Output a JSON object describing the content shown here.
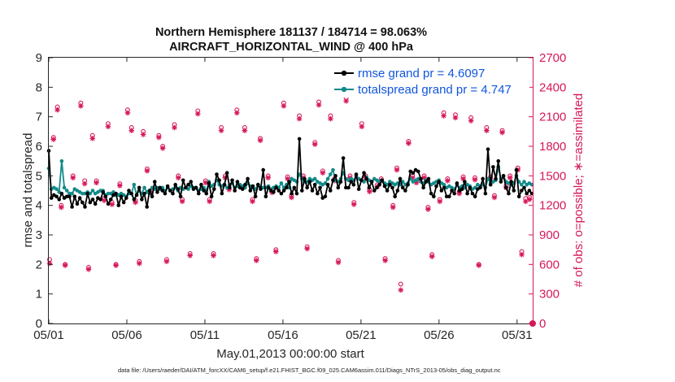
{
  "chart_data": {
    "type": "line",
    "title": "Northern Hemisphere 181137 / 184714 = 98.063%",
    "subtitle": "AIRCRAFT_HORIZONTAL_WIND @ 400 hPa",
    "xlabel": "May.01,2013 00:00:00 start",
    "ylabel": "rmse and totalspread",
    "ylabel_right": "# of obs: o=possible; ∗=assimilated",
    "footer": "data file: /Users/raeder/DAI/ATM_forcXX/CAM6_setup/f.e21.FHIST_BGC.f09_025.CAM6assim.011/Diags_NTrS_2013-05/obs_diag_output.nc",
    "x_tick_labels": [
      "05/01",
      "05/06",
      "05/11",
      "05/16",
      "05/21",
      "05/26",
      "05/31"
    ],
    "x_ticks": [
      1,
      6,
      11,
      16,
      21,
      26,
      31
    ],
    "xlim": [
      1,
      32
    ],
    "ylim": [
      0,
      9
    ],
    "y_ticks": [
      "0",
      "1",
      "2",
      "3",
      "4",
      "5",
      "6",
      "7",
      "8",
      "9"
    ],
    "ylim_right": [
      0,
      2700
    ],
    "y_ticks_right": [
      "0",
      "300",
      "600",
      "900",
      "1200",
      "1500",
      "1800",
      "2100",
      "2400",
      "2700"
    ],
    "legend": [
      {
        "name": "rmse grand pr = 4.6097"
      },
      {
        "name": "totalspread grand pr = 4.747"
      }
    ],
    "colors": {
      "rmse": "#000000",
      "spread": "#138a8a",
      "obs": "#d6175a",
      "legend_text": "#1155dd"
    },
    "series": [
      {
        "name": "rmse",
        "values": [
          5.85,
          4.25,
          4.35,
          4.3,
          4.2,
          4.4,
          4.25,
          4.3,
          4.3,
          3.95,
          4.3,
          4.05,
          4.25,
          4.1,
          3.95,
          4.4,
          4.1,
          4.2,
          4.05,
          4.25,
          4.2,
          4.45,
          4.3,
          4.05,
          4.2,
          4.35,
          4.4,
          4.0,
          4.3,
          4.1,
          4.25,
          4.5,
          4.4,
          4.2,
          4.35,
          4.6,
          4.2,
          4.4,
          3.95,
          4.5,
          4.3,
          4.8,
          4.45,
          4.6,
          4.5,
          4.4,
          4.65,
          4.5,
          4.4,
          4.7,
          4.55,
          4.3,
          4.85,
          4.6,
          4.7,
          4.8,
          4.55,
          4.6,
          4.4,
          4.7,
          4.5,
          4.4,
          4.75,
          4.3,
          4.55,
          5.05,
          4.85,
          4.4,
          4.7,
          5.1,
          4.6,
          4.85,
          4.5,
          4.8,
          4.6,
          4.55,
          4.7,
          4.9,
          4.5,
          4.65,
          4.3,
          4.7,
          4.55,
          5.2,
          4.3,
          4.6,
          4.5,
          4.45,
          4.6,
          4.5,
          4.4,
          4.5,
          4.6,
          4.8,
          4.4,
          4.6,
          4.4,
          6.25,
          4.5,
          4.9,
          4.6,
          4.8,
          4.5,
          4.7,
          4.4,
          4.6,
          4.25,
          4.3,
          4.7,
          4.5,
          4.85,
          5.0,
          4.6,
          4.8,
          5.6,
          4.6,
          4.6,
          4.8,
          4.7,
          5.05,
          4.55,
          4.85,
          5.1,
          4.9,
          4.6,
          4.8,
          4.5,
          4.6,
          4.7,
          4.85,
          4.65,
          4.5,
          4.7,
          4.6,
          4.3,
          4.5,
          4.9,
          4.6,
          4.5,
          4.7,
          5.15,
          5.1,
          5.2,
          5.15,
          4.9,
          4.6,
          4.8,
          4.9,
          4.4,
          4.3,
          4.65,
          4.8,
          4.5,
          4.6,
          4.3,
          4.3,
          4.5,
          4.4,
          4.75,
          4.5,
          4.55,
          4.8,
          4.4,
          4.6,
          4.4,
          4.3,
          4.55,
          4.6,
          4.9,
          4.4,
          5.9,
          4.7,
          5.3,
          4.9,
          5.5,
          4.8,
          5.0,
          4.6,
          4.4,
          4.8,
          4.5,
          5.2,
          4.3,
          4.5,
          4.6,
          4.4,
          4.5,
          4.4
        ]
      },
      {
        "name": "totalspread",
        "values": [
          5.25,
          4.55,
          4.6,
          4.55,
          4.45,
          5.5,
          4.6,
          4.5,
          4.4,
          4.4,
          4.55,
          4.5,
          4.45,
          4.4,
          4.4,
          4.45,
          4.4,
          4.5,
          4.4,
          4.45,
          4.5,
          4.5,
          4.35,
          4.4,
          4.4,
          4.45,
          4.35,
          4.35,
          4.4,
          4.35,
          4.3,
          4.4,
          4.4,
          4.7,
          4.35,
          4.5,
          4.4,
          4.6,
          4.45,
          4.4,
          4.6,
          4.55,
          4.6,
          4.55,
          4.6,
          4.5,
          4.6,
          4.5,
          4.55,
          4.6,
          4.5,
          4.6,
          4.55,
          4.6,
          4.55,
          4.65,
          4.6,
          4.6,
          4.5,
          4.55,
          4.6,
          4.5,
          4.8,
          4.65,
          4.7,
          4.85,
          4.7,
          4.65,
          4.7,
          4.6,
          4.7,
          4.75,
          4.6,
          4.65,
          4.7,
          4.65,
          4.6,
          4.75,
          4.65,
          4.6,
          4.55,
          4.7,
          4.6,
          4.6,
          4.6,
          4.65,
          4.55,
          4.6,
          4.65,
          4.6,
          4.75,
          4.6,
          4.7,
          4.6,
          4.9,
          4.85,
          4.8,
          5.05,
          4.9,
          4.8,
          4.8,
          4.9,
          4.85,
          4.9,
          4.8,
          4.75,
          4.7,
          4.75,
          4.9,
          5.05,
          5.2,
          4.85,
          4.8,
          4.9,
          5.1,
          4.9,
          4.85,
          4.9,
          4.85,
          5.0,
          4.9,
          4.85,
          4.8,
          4.95,
          4.85,
          4.8,
          4.9,
          4.85,
          4.8,
          4.85,
          4.75,
          4.7,
          4.8,
          4.75,
          4.7,
          4.75,
          4.7,
          4.8,
          4.7,
          4.75,
          4.9,
          4.8,
          4.85,
          4.9,
          4.8,
          4.75,
          4.85,
          4.8,
          4.7,
          4.75,
          4.8,
          4.85,
          4.75,
          4.7,
          4.6,
          4.65,
          4.6,
          4.55,
          4.7,
          4.6,
          4.65,
          4.6,
          4.7,
          4.65,
          4.55,
          4.6,
          4.7,
          4.65,
          4.7,
          4.6,
          4.9,
          4.75,
          4.8,
          4.85,
          5.3,
          4.9,
          5.0,
          4.8,
          4.75,
          4.7,
          4.75,
          5.0,
          4.8,
          4.7,
          4.8,
          4.7,
          4.75,
          4.7
        ]
      },
      {
        "name": "obs_possible",
        "x": [
          1.05,
          1.3,
          1.55,
          1.8,
          2.05,
          2.55,
          3.05,
          3.3,
          3.55,
          3.8,
          4.05,
          4.55,
          4.8,
          5.05,
          5.3,
          5.55,
          6.05,
          6.3,
          6.55,
          6.8,
          7.05,
          7.3,
          7.55,
          8.05,
          8.3,
          8.55,
          9.05,
          9.3,
          9.55,
          10.05,
          10.55,
          11.05,
          11.3,
          11.55,
          12.05,
          12.3,
          12.55,
          13.05,
          13.55,
          14.05,
          14.3,
          14.55,
          15.05,
          15.3,
          15.55,
          16.05,
          16.3,
          16.55,
          17.05,
          17.3,
          17.55,
          18.05,
          18.3,
          18.55,
          19.05,
          19.3,
          19.55,
          20.05,
          20.3,
          20.55,
          21.05,
          21.3,
          21.55,
          22.05,
          22.3,
          22.55,
          23.05,
          23.3,
          23.55,
          24.05,
          24.3,
          24.55,
          25.05,
          25.3,
          25.55,
          26.05,
          26.3,
          26.55,
          27.05,
          27.3,
          27.55,
          28.05,
          28.3,
          28.55,
          29.05,
          29.3,
          29.55,
          30.05,
          30.3,
          30.55,
          31.05,
          31.3,
          31.55,
          31.8
        ],
        "values": [
          650,
          1890,
          2200,
          1200,
          600,
          1500,
          2240,
          1450,
          570,
          1910,
          1450,
          1270,
          2030,
          1230,
          600,
          1420,
          2170,
          1990,
          1250,
          630,
          1950,
          1570,
          1350,
          1910,
          1800,
          650,
          2020,
          1500,
          1260,
          710,
          2160,
          1450,
          1260,
          710,
          1990,
          1500,
          1380,
          2170,
          1990,
          1260,
          660,
          1880,
          1500,
          1350,
          750,
          2240,
          1490,
          1300,
          2110,
          1500,
          780,
          1840,
          2250,
          1550,
          2110,
          1470,
          640,
          2290,
          1500,
          1230,
          2030,
          1500,
          1360,
          1410,
          1470,
          660,
          1200,
          1580,
          400,
          1850,
          1500,
          1450,
          1500,
          1180,
          700,
          1260,
          2140,
          1470,
          2120,
          1340,
          1490,
          2090,
          1480,
          600,
          1990,
          1490,
          1300,
          1960,
          1400,
          1500,
          1580,
          730,
          1270,
          1280
        ]
      },
      {
        "name": "obs_assimilated",
        "x": [
          1.05,
          1.3,
          1.55,
          1.8,
          2.05,
          2.55,
          3.05,
          3.3,
          3.55,
          3.8,
          4.05,
          4.55,
          4.8,
          5.05,
          5.3,
          5.55,
          6.05,
          6.3,
          6.55,
          6.8,
          7.05,
          7.3,
          7.55,
          8.05,
          8.3,
          8.55,
          9.05,
          9.3,
          9.55,
          10.05,
          10.55,
          11.05,
          11.3,
          11.55,
          12.05,
          12.3,
          12.55,
          13.05,
          13.55,
          14.05,
          14.3,
          14.55,
          15.05,
          15.3,
          15.55,
          16.05,
          16.3,
          16.55,
          17.05,
          17.3,
          17.55,
          18.05,
          18.3,
          18.55,
          19.05,
          19.3,
          19.55,
          20.05,
          20.3,
          20.55,
          21.05,
          21.3,
          21.55,
          22.05,
          22.3,
          22.55,
          23.05,
          23.3,
          23.55,
          24.05,
          24.3,
          24.55,
          25.05,
          25.3,
          25.55,
          26.05,
          26.3,
          26.55,
          27.05,
          27.3,
          27.55,
          28.05,
          28.3,
          28.55,
          29.05,
          29.3,
          29.55,
          30.05,
          30.3,
          30.55,
          31.05,
          31.3,
          31.55,
          31.8
        ],
        "values": [
          610,
          1870,
          2170,
          1180,
          590,
          1480,
          2210,
          1420,
          550,
          1880,
          1430,
          1250,
          2000,
          1210,
          590,
          1400,
          2140,
          1960,
          1230,
          610,
          1920,
          1550,
          1330,
          1890,
          1780,
          630,
          1990,
          1480,
          1240,
          690,
          2130,
          1430,
          1240,
          690,
          1960,
          1480,
          1360,
          2140,
          1960,
          1240,
          640,
          1860,
          1480,
          1330,
          730,
          2210,
          1470,
          1280,
          2080,
          1480,
          760,
          1820,
          2220,
          1530,
          2080,
          1450,
          620,
          2260,
          1480,
          1210,
          2000,
          1480,
          1340,
          1390,
          1450,
          640,
          1180,
          1560,
          340,
          1830,
          1480,
          1430,
          1480,
          1160,
          680,
          1240,
          2110,
          1450,
          2090,
          1320,
          1470,
          2060,
          1460,
          590,
          1960,
          1470,
          1280,
          1940,
          1380,
          1480,
          1560,
          700,
          1240,
          1260
        ]
      }
    ]
  }
}
